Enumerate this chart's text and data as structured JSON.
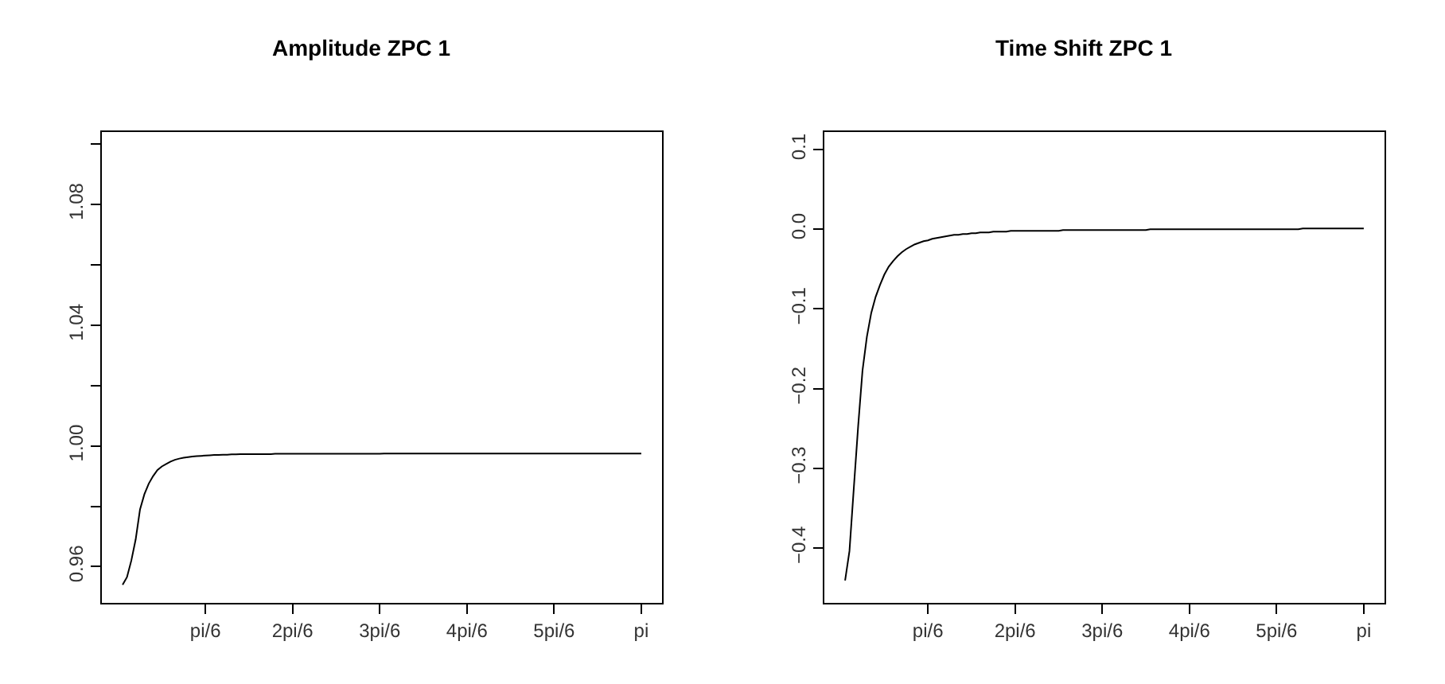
{
  "chart_data": [
    {
      "type": "line",
      "title": "Amplitude ZPC 1",
      "grid": false,
      "marker": "none",
      "line_style": "solid",
      "categories": [
        null,
        null,
        null,
        null,
        null,
        null,
        null,
        null,
        null,
        null,
        null,
        null,
        null,
        null,
        null,
        null,
        null,
        null,
        null,
        null,
        "pi/6",
        null,
        null,
        null,
        null,
        null,
        null,
        null,
        null,
        null,
        null,
        null,
        null,
        null,
        null,
        null,
        null,
        null,
        null,
        null,
        "2pi/6",
        null,
        null,
        null,
        null,
        null,
        null,
        null,
        null,
        null,
        null,
        null,
        null,
        null,
        null,
        null,
        null,
        null,
        null,
        null,
        "3pi/6",
        null,
        null,
        null,
        null,
        null,
        null,
        null,
        null,
        null,
        null,
        null,
        null,
        null,
        null,
        null,
        null,
        null,
        null,
        null,
        "4pi/6",
        null,
        null,
        null,
        null,
        null,
        null,
        null,
        null,
        null,
        null,
        null,
        null,
        null,
        null,
        null,
        null,
        null,
        null,
        null,
        "5pi/6",
        null,
        null,
        null,
        null,
        null,
        null,
        null,
        null,
        null,
        null,
        null,
        null,
        null,
        null,
        null,
        null,
        null,
        null,
        null,
        "pi"
      ],
      "ylim": [
        0.948,
        1.104
      ],
      "yticks": [
        0.96,
        {
          "value": 0.98,
          "label": null
        },
        {
          "value": 1.0,
          "label": "1.00"
        },
        {
          "value": 1.02,
          "label": null
        },
        1.04,
        {
          "value": 1.06,
          "label": null
        },
        1.08,
        {
          "value": 1.1,
          "label": null
        }
      ],
      "series": [
        {
          "color": "#000000",
          "values": [
            null,
            0.954,
            0.9565,
            0.962,
            0.969,
            0.979,
            0.984,
            0.9875,
            0.99,
            0.992,
            0.9932,
            0.994,
            0.9948,
            0.9954,
            0.9958,
            0.9961,
            0.9963,
            0.9965,
            0.9966,
            0.9967,
            0.9968,
            0.9969,
            0.997,
            0.997,
            0.9971,
            0.9971,
            0.9972,
            0.9972,
            0.9973,
            0.9973,
            0.9973,
            0.9973,
            0.9973,
            0.9973,
            0.9973,
            0.9973,
            0.9974,
            0.9974,
            0.9974,
            0.9974,
            0.9974,
            0.9974,
            0.9974,
            0.9974,
            0.9974,
            0.9974,
            0.9974,
            0.9974,
            0.9974,
            0.9974,
            0.9974,
            0.9974,
            0.9974,
            0.9974,
            0.9974,
            0.9974,
            0.9974,
            0.9974,
            0.9974,
            0.9974,
            0.9974,
            0.9975,
            0.9975,
            0.9975,
            0.9975,
            0.9975,
            0.9975,
            0.9975,
            0.9975,
            0.9975,
            0.9975,
            0.9975,
            0.9975,
            0.9975,
            0.9975,
            0.9975,
            0.9975,
            0.9975,
            0.9975,
            0.9975,
            0.9975,
            0.9975,
            0.9975,
            0.9975,
            0.9975,
            0.9975,
            0.9975,
            0.9975,
            0.9975,
            0.9975,
            0.9975,
            0.9975,
            0.9975,
            0.9975,
            0.9975,
            0.9975,
            0.9975,
            0.9975,
            0.9975,
            0.9975,
            0.9975,
            0.9975,
            0.9975,
            0.9975,
            0.9975,
            0.9975,
            0.9975,
            0.9975,
            0.9975,
            0.9975,
            0.9975,
            0.9975,
            0.9975,
            0.9975,
            0.9975,
            0.9975,
            0.9975,
            0.9975,
            0.9975,
            0.9975,
            0.9975
          ]
        }
      ]
    },
    {
      "type": "line",
      "title": "Time Shift ZPC 1",
      "grid": false,
      "marker": "none",
      "line_style": "solid",
      "categories": [
        null,
        null,
        null,
        null,
        null,
        null,
        null,
        null,
        null,
        null,
        null,
        null,
        null,
        null,
        null,
        null,
        null,
        null,
        null,
        null,
        "pi/6",
        null,
        null,
        null,
        null,
        null,
        null,
        null,
        null,
        null,
        null,
        null,
        null,
        null,
        null,
        null,
        null,
        null,
        null,
        null,
        "2pi/6",
        null,
        null,
        null,
        null,
        null,
        null,
        null,
        null,
        null,
        null,
        null,
        null,
        null,
        null,
        null,
        null,
        null,
        null,
        null,
        "3pi/6",
        null,
        null,
        null,
        null,
        null,
        null,
        null,
        null,
        null,
        null,
        null,
        null,
        null,
        null,
        null,
        null,
        null,
        null,
        null,
        "4pi/6",
        null,
        null,
        null,
        null,
        null,
        null,
        null,
        null,
        null,
        null,
        null,
        null,
        null,
        null,
        null,
        null,
        null,
        null,
        null,
        "5pi/6",
        null,
        null,
        null,
        null,
        null,
        null,
        null,
        null,
        null,
        null,
        null,
        null,
        null,
        null,
        null,
        null,
        null,
        null,
        null,
        "pi"
      ],
      "ylim": [
        -0.469,
        0.122
      ],
      "yticks": [
        {
          "value": -0.4,
          "label": "−0.4"
        },
        {
          "value": -0.3,
          "label": "−0.3"
        },
        {
          "value": -0.2,
          "label": "−0.2"
        },
        {
          "value": -0.1,
          "label": "−0.1"
        },
        {
          "value": 0,
          "label": "0.0"
        },
        0.1
      ],
      "series": [
        {
          "color": "#000000",
          "values": [
            null,
            -0.441,
            -0.404,
            -0.325,
            -0.247,
            -0.177,
            -0.135,
            -0.105,
            -0.085,
            -0.07,
            -0.057,
            -0.047,
            -0.04,
            -0.034,
            -0.029,
            -0.025,
            -0.022,
            -0.019,
            -0.017,
            -0.015,
            -0.014,
            -0.012,
            -0.011,
            -0.01,
            -0.009,
            -0.008,
            -0.007,
            -0.007,
            -0.006,
            -0.006,
            -0.005,
            -0.005,
            -0.004,
            -0.004,
            -0.004,
            -0.003,
            -0.003,
            -0.003,
            -0.003,
            -0.002,
            -0.002,
            -0.002,
            -0.002,
            -0.002,
            -0.002,
            -0.002,
            -0.002,
            -0.002,
            -0.002,
            -0.002,
            -0.002,
            -0.001,
            -0.001,
            -0.001,
            -0.001,
            -0.001,
            -0.001,
            -0.001,
            -0.001,
            -0.001,
            -0.001,
            -0.001,
            -0.001,
            -0.001,
            -0.001,
            -0.001,
            -0.001,
            -0.001,
            -0.001,
            -0.001,
            -0.001,
            0,
            0,
            0,
            0,
            0,
            0,
            0,
            0,
            0,
            0,
            0,
            0,
            0,
            0,
            0,
            0,
            0,
            0,
            0,
            0,
            0,
            0,
            0,
            0,
            0,
            0,
            0,
            0,
            0,
            0,
            0,
            0,
            0,
            0,
            0,
            0.001,
            0.001,
            0.001,
            0.001,
            0.001,
            0.001,
            0.001,
            0.001,
            0.001,
            0.001,
            0.001,
            0.001,
            0.001,
            0.001,
            0.001
          ]
        }
      ]
    }
  ]
}
